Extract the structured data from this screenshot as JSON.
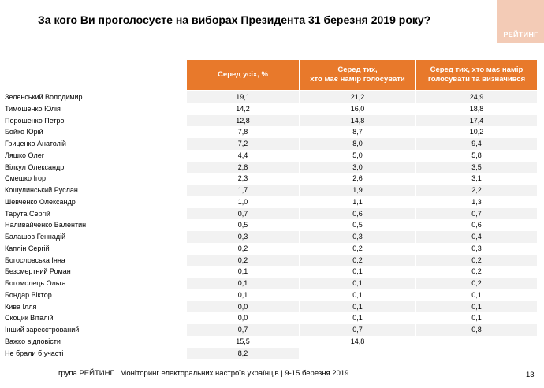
{
  "title": "За кого Ви проголосуєте на виборах Президента 31 березня 2019 року?",
  "logo_text": "РЕЙТИНГ",
  "headers": [
    "Серед усіх, %",
    "Серед тих,\nхто має намір голосувати",
    "Серед тих, хто має намір\nголосувати та визначився"
  ],
  "rows": [
    {
      "name": "Зеленський Володимир",
      "v": [
        "19,1",
        "21,2",
        "24,9"
      ]
    },
    {
      "name": "Тимошенко Юлія",
      "v": [
        "14,2",
        "16,0",
        "18,8"
      ]
    },
    {
      "name": "Порошенко Петро",
      "v": [
        "12,8",
        "14,8",
        "17,4"
      ]
    },
    {
      "name": "Бойко Юрій",
      "v": [
        "7,8",
        "8,7",
        "10,2"
      ]
    },
    {
      "name": "Гриценко Анатолій",
      "v": [
        "7,2",
        "8,0",
        "9,4"
      ]
    },
    {
      "name": "Ляшко Олег",
      "v": [
        "4,4",
        "5,0",
        "5,8"
      ]
    },
    {
      "name": "Вілкул Олександр",
      "v": [
        "2,8",
        "3,0",
        "3,5"
      ]
    },
    {
      "name": "Смешко Ігор",
      "v": [
        "2,3",
        "2,6",
        "3,1"
      ]
    },
    {
      "name": "Кошулинський Руслан",
      "v": [
        "1,7",
        "1,9",
        "2,2"
      ]
    },
    {
      "name": "Шевченко Олександр",
      "v": [
        "1,0",
        "1,1",
        "1,3"
      ]
    },
    {
      "name": "Тарута Сергій",
      "v": [
        "0,7",
        "0,6",
        "0,7"
      ]
    },
    {
      "name": "Наливайченко Валентин",
      "v": [
        "0,5",
        "0,5",
        "0,6"
      ]
    },
    {
      "name": "Балашов Геннадій",
      "v": [
        "0,3",
        "0,3",
        "0,4"
      ]
    },
    {
      "name": "Каплін Сергій",
      "v": [
        "0,2",
        "0,2",
        "0,3"
      ]
    },
    {
      "name": "Богословська Інна",
      "v": [
        "0,2",
        "0,2",
        "0,2"
      ]
    },
    {
      "name": "Безсмертний Роман",
      "v": [
        "0,1",
        "0,1",
        "0,2"
      ]
    },
    {
      "name": "Богомолець Ольга",
      "v": [
        "0,1",
        "0,1",
        "0,2"
      ]
    },
    {
      "name": "Бондар Віктор",
      "v": [
        "0,1",
        "0,1",
        "0,1"
      ]
    },
    {
      "name": "Кива Ілля",
      "v": [
        "0,0",
        "0,1",
        "0,1"
      ]
    },
    {
      "name": "Скоцик Віталій",
      "v": [
        "0,0",
        "0,1",
        "0,1"
      ]
    },
    {
      "name": "Інший зареєстрований",
      "v": [
        "0,7",
        "0,7",
        "0,8"
      ]
    },
    {
      "name": "Важко відповісти",
      "v": [
        "15,5",
        "14,8",
        ""
      ]
    },
    {
      "name": "Не брали б участі",
      "v": [
        "8,2",
        "",
        ""
      ]
    }
  ],
  "footer": "група РЕЙТИНГ | Моніторинг електоральних настроїв українців  | 9-15 березня 2019",
  "page_number": "13"
}
